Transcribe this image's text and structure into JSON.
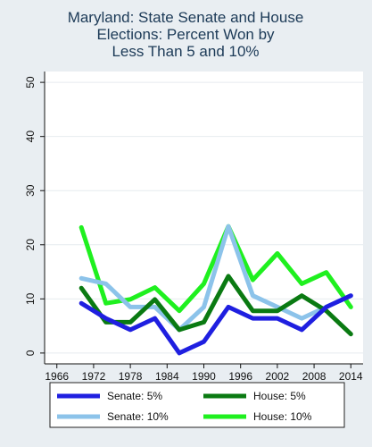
{
  "chart_data": {
    "type": "line",
    "title_lines": [
      "Maryland: State Senate and House",
      "Elections: Percent Won by",
      "Less Than 5 and 10%"
    ],
    "xlabel": "",
    "ylabel": "",
    "xlim": [
      1964,
      2016
    ],
    "ylim": [
      -2,
      52
    ],
    "x_ticks": [
      1966,
      1972,
      1978,
      1984,
      1990,
      1996,
      2002,
      2008,
      2014
    ],
    "y_ticks": [
      0,
      10,
      20,
      30,
      40,
      50
    ],
    "grid": "horizontal",
    "legend_position": "bottom",
    "x": [
      1970,
      1974,
      1978,
      1982,
      1986,
      1990,
      1994,
      1998,
      2002,
      2006,
      2010,
      2014
    ],
    "series": [
      {
        "name": "Senate: 5%",
        "color": "#1f1fe0",
        "values": [
          9.2,
          6.4,
          4.3,
          6.4,
          0.0,
          2.1,
          8.5,
          6.4,
          6.4,
          4.3,
          8.5,
          10.6
        ]
      },
      {
        "name": "House: 5%",
        "color": "#0a7a12",
        "values": [
          12.0,
          5.7,
          5.7,
          9.9,
          4.3,
          5.7,
          14.2,
          7.8,
          7.8,
          10.6,
          7.8,
          3.5
        ]
      },
      {
        "name": "Senate: 10%",
        "color": "#8cc3ea",
        "values": [
          13.8,
          12.8,
          8.5,
          8.5,
          4.3,
          8.5,
          23.4,
          10.6,
          8.5,
          6.4,
          8.5,
          10.6
        ]
      },
      {
        "name": "House: 10%",
        "color": "#1ff01f",
        "values": [
          23.2,
          9.2,
          9.9,
          12.1,
          7.8,
          12.8,
          23.4,
          13.5,
          18.4,
          12.8,
          14.9,
          8.5
        ]
      }
    ]
  }
}
